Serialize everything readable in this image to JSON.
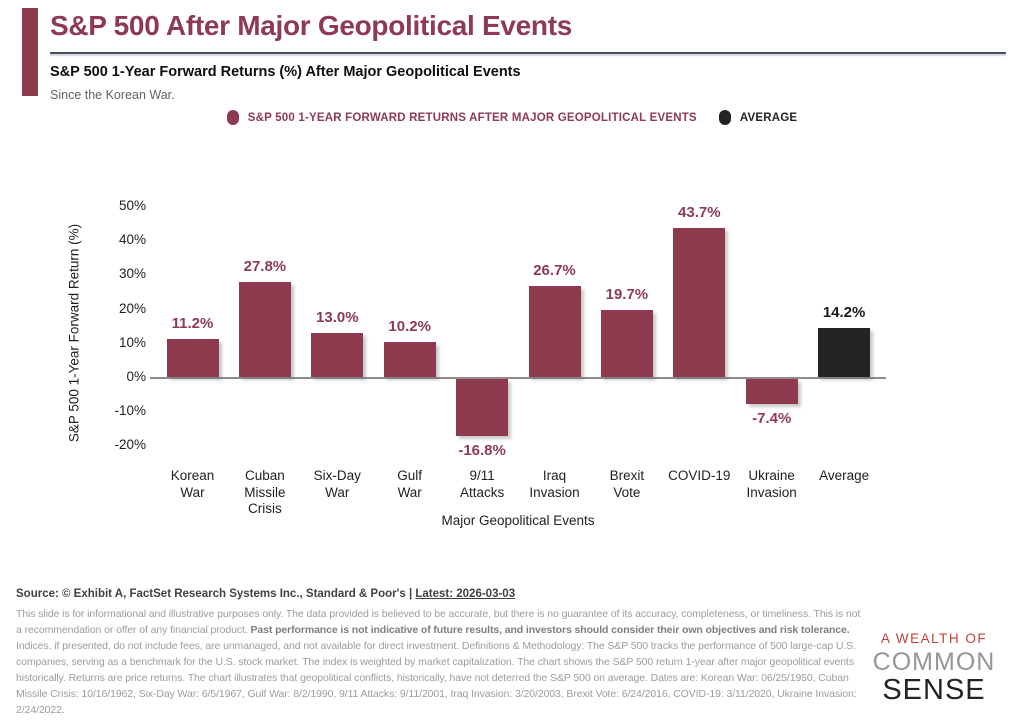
{
  "colors": {
    "accent": "#8e3a52",
    "bar": "#8d3a4f",
    "average_bar": "#232323",
    "average_label": "#1b1b1b",
    "rule": "#454d66",
    "axis_line": "#8c8c8c"
  },
  "header": {
    "title": "S&P 500 After Major Geopolitical Events",
    "subtitle": "S&P 500 1-Year Forward Returns (%) After Major Geopolitical Events",
    "tagline": "Since the Korean War."
  },
  "legend": [
    {
      "label": "S&P 500 1-YEAR FORWARD RETURNS AFTER MAJOR GEOPOLITICAL EVENTS",
      "color": "#8e3a52"
    },
    {
      "label": "AVERAGE",
      "color": "#232323"
    }
  ],
  "chart_data": {
    "type": "bar",
    "title": "S&P 500 1-Year Forward Returns (%) After Major Geopolitical Events",
    "xlabel": "Major Geopolitical Events",
    "ylabel": "S&P 500 1-Year Forward Return (%)",
    "categories": [
      "Korean War",
      "Cuban Missile Crisis",
      "Six-Day War",
      "Gulf War",
      "9/11 Attacks",
      "Iraq Invasion",
      "Brexit Vote",
      "COVID-19",
      "Ukraine Invasion",
      "Average"
    ],
    "category_lines": [
      [
        "Korean",
        "War"
      ],
      [
        "Cuban",
        "Missile",
        "Crisis"
      ],
      [
        "Six-Day",
        "War"
      ],
      [
        "Gulf",
        "War"
      ],
      [
        "9/11",
        "Attacks"
      ],
      [
        "Iraq",
        "Invasion"
      ],
      [
        "Brexit",
        "Vote"
      ],
      [
        "COVID-19"
      ],
      [
        "Ukraine",
        "Invasion"
      ],
      [
        "Average"
      ]
    ],
    "values": [
      11.2,
      27.8,
      13.0,
      10.2,
      -16.8,
      26.7,
      19.7,
      43.7,
      -7.4,
      14.2
    ],
    "labels": [
      "11.2%",
      "27.8%",
      "13.0%",
      "10.2%",
      "-16.8%",
      "26.7%",
      "19.7%",
      "43.7%",
      "-7.4%",
      "14.2%"
    ],
    "average_index": 9,
    "ylim": [
      -20,
      50
    ],
    "yticks": [
      50,
      40,
      30,
      20,
      10,
      0,
      -10,
      -20
    ],
    "ytick_labels": [
      "50%",
      "40%",
      "30%",
      "20%",
      "10%",
      "0%",
      "-10%",
      "-20%"
    ],
    "grid": false,
    "legend_position": "top"
  },
  "footer": {
    "source_prefix": "Source: © Exhibit A, FactSet Research Systems Inc., Standard & Poor's | ",
    "source_latest": "Latest: 2026-03-03",
    "disclaimer_1": "This slide is for informational and illustrative purposes only. The data provided is believed to be accurate, but there is no guarantee of its accuracy, completeness, or timeliness. This is not a recommendation or offer of any financial product. ",
    "disclaimer_bold": "Past performance is not indicative of future results, and investors should consider their own objectives and risk tolerance.",
    "disclaimer_2": " Indices, if presented, do not include fees, are unmanaged, and not available for direct investment. Definitions & Methodology: The S&P 500 tracks the performance of 500 large-cap U.S. companies, serving as a benchmark for the U.S. stock market. The index is weighted by market capitalization. The chart shows the S&P 500 return 1-year after major geopolitical events historically. Returns are price returns. The chart illustrates that geopolitical conflicts, historically, have not deterred the S&P 500 on average. Dates are: Korean War: 06/25/1950, Cuban Missile Crisis: 10/16/1962, Six-Day War: 6/5/1967, Gulf War: 8/2/1990, 9/11 Attacks: 9/11/2001, Iraq Invasion: 3/20/2003, Brexit Vote: 6/24/2016, COVID-19: 3/11/2020, Ukraine Invasion: 2/24/2022."
  },
  "logo": {
    "line1": "A WEALTH OF",
    "line2": "COMMON",
    "line3": "SENSE"
  }
}
